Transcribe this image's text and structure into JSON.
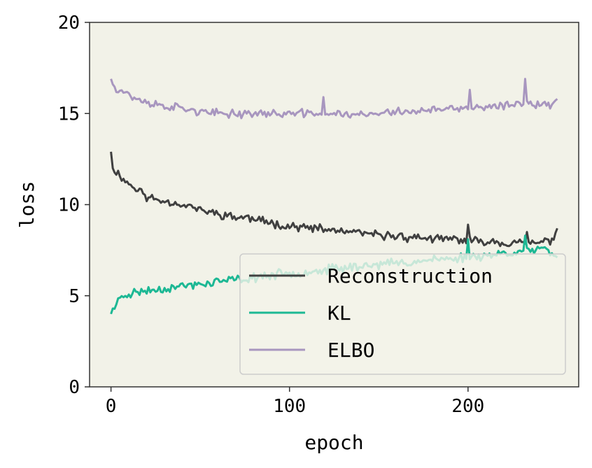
{
  "chart_data": {
    "type": "line",
    "xlabel": "epoch",
    "ylabel": "loss",
    "xlim": [
      -12,
      262
    ],
    "ylim": [
      0,
      20
    ],
    "x_ticks": [
      0,
      100,
      200
    ],
    "y_ticks": [
      0,
      5,
      10,
      15,
      20
    ],
    "grid": false,
    "legend_position": "lower-right",
    "colors": {
      "plot_background": "#f2f2e8",
      "axes": "#333333",
      "legend_background": "#f2f2e8",
      "legend_border": "#cccccc"
    },
    "series": [
      {
        "name": "Reconstruction",
        "color": "#404040",
        "anchor_x": [
          0,
          1,
          3,
          5,
          8,
          12,
          16,
          20,
          25,
          30,
          35,
          40,
          45,
          50,
          55,
          60,
          65,
          70,
          75,
          80,
          85,
          90,
          95,
          100,
          105,
          110,
          115,
          120,
          125,
          130,
          135,
          140,
          145,
          150,
          155,
          160,
          165,
          170,
          175,
          180,
          185,
          190,
          195,
          200,
          205,
          210,
          215,
          220,
          225,
          230,
          235,
          240,
          245,
          248,
          250
        ],
        "anchor_y": [
          12.9,
          12.0,
          11.8,
          11.6,
          11.3,
          11.0,
          10.8,
          10.4,
          10.3,
          10.2,
          10.1,
          10.0,
          9.9,
          9.7,
          9.6,
          9.5,
          9.4,
          9.3,
          9.3,
          9.2,
          9.1,
          9.0,
          8.9,
          8.8,
          8.8,
          8.7,
          8.7,
          8.6,
          8.6,
          8.5,
          8.5,
          8.4,
          8.4,
          8.3,
          8.3,
          8.3,
          8.2,
          8.2,
          8.2,
          8.1,
          8.1,
          8.1,
          8.1,
          8.0,
          8.0,
          8.0,
          8.0,
          7.9,
          7.9,
          7.9,
          7.9,
          7.9,
          8.0,
          8.2,
          8.7
        ],
        "noise": 0.28,
        "seed": 11,
        "spikes": [
          {
            "x": 200,
            "y": 8.9
          },
          {
            "x": 233,
            "y": 8.5
          }
        ]
      },
      {
        "name": "KL",
        "color": "#1db894",
        "anchor_x": [
          0,
          1,
          3,
          5,
          7,
          10,
          15,
          20,
          25,
          30,
          35,
          40,
          45,
          50,
          55,
          60,
          65,
          70,
          75,
          80,
          85,
          90,
          95,
          100,
          105,
          110,
          115,
          120,
          125,
          130,
          135,
          140,
          145,
          150,
          155,
          160,
          165,
          170,
          175,
          180,
          185,
          190,
          195,
          200,
          205,
          210,
          215,
          220,
          225,
          230,
          235,
          240,
          245,
          250
        ],
        "anchor_y": [
          4.0,
          4.3,
          4.5,
          4.9,
          5.0,
          5.1,
          5.2,
          5.3,
          5.3,
          5.4,
          5.5,
          5.5,
          5.6,
          5.6,
          5.7,
          5.8,
          5.8,
          5.9,
          5.9,
          6.0,
          6.1,
          6.1,
          6.2,
          6.2,
          6.3,
          6.3,
          6.4,
          6.4,
          6.5,
          6.5,
          6.6,
          6.6,
          6.7,
          6.7,
          6.8,
          6.8,
          6.8,
          6.9,
          6.9,
          7.0,
          7.0,
          7.0,
          7.1,
          7.1,
          7.2,
          7.2,
          7.3,
          7.3,
          7.4,
          7.4,
          7.5,
          7.5,
          7.5,
          7.1
        ],
        "noise": 0.3,
        "seed": 23,
        "spikes": [
          {
            "x": 200,
            "y": 8.1
          },
          {
            "x": 232,
            "y": 8.3
          }
        ]
      },
      {
        "name": "ELBO",
        "color": "#a896bf",
        "anchor_x": [
          0,
          1,
          3,
          5,
          8,
          12,
          16,
          20,
          25,
          30,
          40,
          50,
          55,
          60,
          70,
          80,
          90,
          100,
          110,
          120,
          130,
          140,
          150,
          160,
          170,
          180,
          190,
          200,
          210,
          220,
          230,
          235,
          240,
          245,
          250
        ],
        "anchor_y": [
          16.9,
          16.6,
          16.4,
          16.3,
          16.2,
          15.9,
          15.7,
          15.6,
          15.5,
          15.4,
          15.3,
          15.1,
          15.0,
          15.0,
          15.0,
          15.0,
          15.0,
          15.0,
          15.0,
          15.0,
          15.0,
          14.9,
          15.0,
          15.1,
          15.1,
          15.2,
          15.2,
          15.3,
          15.3,
          15.4,
          15.6,
          15.6,
          15.5,
          15.4,
          15.8
        ],
        "noise": 0.28,
        "seed": 37,
        "spikes": [
          {
            "x": 119,
            "y": 15.9
          },
          {
            "x": 201,
            "y": 16.3
          },
          {
            "x": 232,
            "y": 16.9
          }
        ]
      }
    ]
  }
}
